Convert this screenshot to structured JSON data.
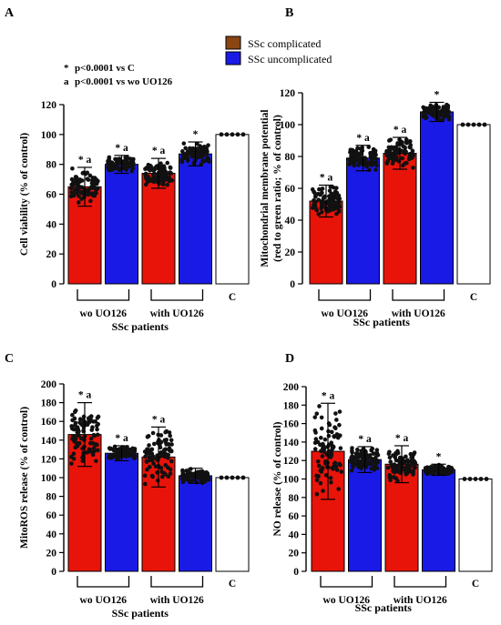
{
  "figure": {
    "legend": [
      {
        "label": "SSc complicated",
        "color": "#8B4513"
      },
      {
        "label": "SSc uncomplicated",
        "color": "#1A1AE6"
      }
    ],
    "notes": [
      {
        "symbol": "*",
        "text": "p<0.0001 vs C"
      },
      {
        "symbol": "a",
        "text": "p<0.0001 vs wo UO126"
      }
    ],
    "colors": {
      "red_bar": "#E8140A",
      "blue_bar": "#1A1AE6",
      "control_bar": "#FFFFFF"
    }
  },
  "chart_data": [
    {
      "panel": "A",
      "type": "bar",
      "ylabel": "Cell viability (% of control)",
      "ylim": [
        0,
        120
      ],
      "yticks": [
        "0",
        "20",
        "40",
        "60",
        "80",
        "100",
        "120"
      ],
      "bar_colors": [
        "red",
        "blue",
        "red",
        "blue",
        "white"
      ],
      "values": [
        65,
        80,
        74,
        87,
        100
      ],
      "error": [
        13,
        6,
        10,
        8,
        0
      ],
      "annotations": [
        "* a",
        "* a",
        "* a",
        "*",
        ""
      ],
      "groups": [
        {
          "label": "wo UO126",
          "bars": [
            0,
            1
          ]
        },
        {
          "label": "with UO126",
          "bars": [
            2,
            3
          ]
        },
        {
          "label": "C",
          "bars": [
            4
          ]
        }
      ],
      "xlabel": "SSc patients"
    },
    {
      "panel": "B",
      "type": "bar",
      "ylabel_lines": [
        "Mitochondrial membrane potential",
        "(red to green ratio; % of control)"
      ],
      "ylim": [
        0,
        120
      ],
      "yticks": [
        "0",
        "20",
        "40",
        "60",
        "80",
        "100",
        "120"
      ],
      "bar_colors": [
        "red",
        "blue",
        "red",
        "blue",
        "white"
      ],
      "values": [
        52,
        79,
        82,
        108,
        100
      ],
      "error": [
        10,
        8,
        10,
        6,
        0
      ],
      "annotations": [
        "* a",
        "* a",
        "* a",
        "*",
        ""
      ],
      "groups": [
        {
          "label": "wo UO126",
          "bars": [
            0,
            1
          ]
        },
        {
          "label": "with UO126",
          "bars": [
            2,
            3
          ]
        },
        {
          "label": "C",
          "bars": [
            4
          ]
        }
      ],
      "xlabel": "SSc patients"
    },
    {
      "panel": "C",
      "type": "bar",
      "ylabel": "MitoROS release (% of control)",
      "ylim": [
        0,
        200
      ],
      "yticks": [
        "0",
        "20",
        "40",
        "60",
        "80",
        "100",
        "120",
        "140",
        "160",
        "180",
        "200"
      ],
      "bar_colors": [
        "red",
        "blue",
        "red",
        "blue",
        "white"
      ],
      "values": [
        146,
        126,
        122,
        102,
        100
      ],
      "error": [
        34,
        8,
        32,
        8,
        0
      ],
      "annotations": [
        "* a",
        "* a",
        "* a",
        "",
        ""
      ],
      "groups": [
        {
          "label": "wo UO126",
          "bars": [
            0,
            1
          ]
        },
        {
          "label": "with UO126",
          "bars": [
            2,
            3
          ]
        },
        {
          "label": "C",
          "bars": [
            4
          ]
        }
      ],
      "xlabel": "SSc patients"
    },
    {
      "panel": "D",
      "type": "bar",
      "ylabel": "NO release (% of control)",
      "ylim": [
        0,
        200
      ],
      "yticks": [
        "0",
        "20",
        "40",
        "60",
        "80",
        "100",
        "120",
        "140",
        "160",
        "180",
        "200"
      ],
      "bar_colors": [
        "red",
        "blue",
        "red",
        "blue",
        "white"
      ],
      "values": [
        130,
        121,
        116,
        110,
        100
      ],
      "error": [
        52,
        14,
        20,
        6,
        0
      ],
      "annotations": [
        "* a",
        "* a",
        "* a",
        "*",
        ""
      ],
      "groups": [
        {
          "label": "wo UO126",
          "bars": [
            0,
            1
          ]
        },
        {
          "label": "with UO126",
          "bars": [
            2,
            3
          ]
        },
        {
          "label": "C",
          "bars": [
            4
          ]
        }
      ],
      "xlabel": "SSc patients"
    }
  ]
}
